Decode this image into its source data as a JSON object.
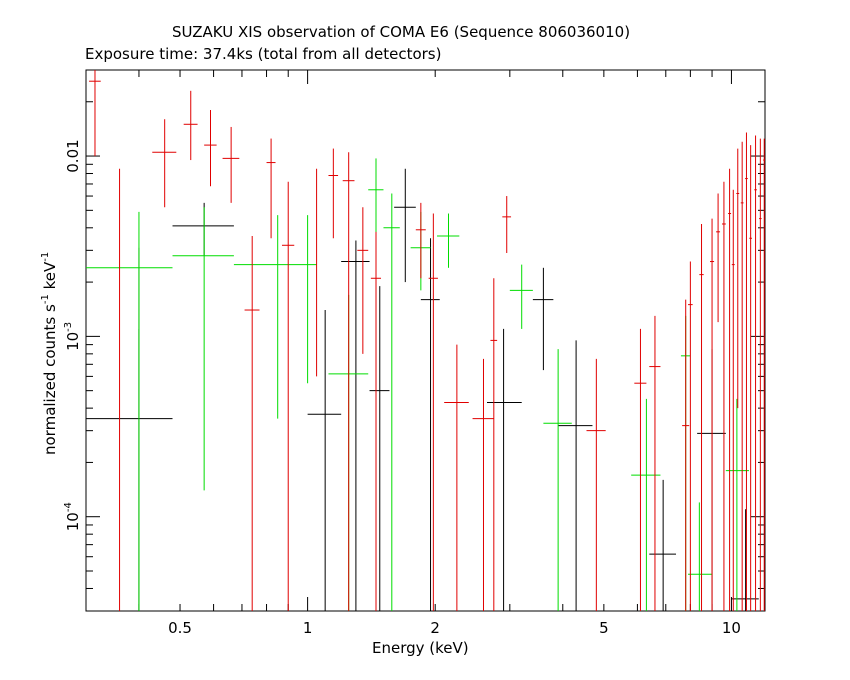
{
  "title": "SUZAKU XIS observation of COMA E6 (Sequence 806036010)",
  "subtitle": "Exposure time: 37.4ks (total from all detectors)",
  "colors": {
    "black": "#000000",
    "red": "#e00000",
    "green": "#00dd00"
  },
  "chart_data": {
    "type": "scatter",
    "xlabel": "Energy (keV)",
    "ylabel": {
      "a": "normalized counts s",
      "b": "-1",
      "c": " keV",
      "d": "-1"
    },
    "xscale": "log",
    "yscale": "log",
    "xlim": [
      0.3,
      12
    ],
    "ylim": [
      3e-05,
      0.03
    ],
    "x_ticks": [
      {
        "v": 0.5,
        "label": "0.5"
      },
      {
        "v": 1,
        "label": "1"
      },
      {
        "v": 2,
        "label": "2"
      },
      {
        "v": 5,
        "label": "5"
      },
      {
        "v": 10,
        "label": "10"
      }
    ],
    "y_ticks": [
      {
        "v": 0.01,
        "label": "0.01",
        "sup": ""
      },
      {
        "v": 0.001,
        "label": "10",
        "sup": "-3"
      },
      {
        "v": 0.0001,
        "label": "10",
        "sup": "-4"
      }
    ],
    "series": [
      {
        "color": "black",
        "points": [
          {
            "x": 0.4,
            "xlo": 0.3,
            "xhi": 0.48,
            "y": 0.00035,
            "ylo": 3e-05,
            "yhi": 0.0011
          },
          {
            "x": 0.4,
            "xlo": 0.4,
            "xhi": 0.4,
            "y": 0.0031,
            "ylo": 3e-05,
            "yhi": 0.0031
          },
          {
            "x": 0.57,
            "xlo": 0.48,
            "xhi": 0.67,
            "y": 0.0041,
            "ylo": 0.0028,
            "yhi": 0.0055
          },
          {
            "x": 1.1,
            "xlo": 1.0,
            "xhi": 1.2,
            "y": 0.00037,
            "ylo": 3e-05,
            "yhi": 0.0014
          },
          {
            "x": 1.3,
            "xlo": 1.2,
            "xhi": 1.4,
            "y": 0.0026,
            "ylo": 3e-05,
            "yhi": 0.0034
          },
          {
            "x": 1.48,
            "xlo": 1.4,
            "xhi": 1.56,
            "y": 0.0005,
            "ylo": 3e-05,
            "yhi": 0.0019
          },
          {
            "x": 1.7,
            "xlo": 1.6,
            "xhi": 1.8,
            "y": 0.0052,
            "ylo": 0.002,
            "yhi": 0.0085
          },
          {
            "x": 1.95,
            "xlo": 1.85,
            "xhi": 2.05,
            "y": 0.0016,
            "ylo": 3e-05,
            "yhi": 0.0035
          },
          {
            "x": 2.9,
            "xlo": 2.65,
            "xhi": 3.2,
            "y": 0.00043,
            "ylo": 3e-05,
            "yhi": 0.0011
          },
          {
            "x": 3.6,
            "xlo": 3.4,
            "xhi": 3.8,
            "y": 0.0016,
            "ylo": 0.00065,
            "yhi": 0.0024
          },
          {
            "x": 4.3,
            "xlo": 3.9,
            "xhi": 4.7,
            "y": 0.00032,
            "ylo": 3e-05,
            "yhi": 0.00095
          },
          {
            "x": 6.9,
            "xlo": 6.4,
            "xhi": 7.4,
            "y": 6.2e-05,
            "ylo": 3e-05,
            "yhi": 0.00016
          },
          {
            "x": 9.0,
            "xlo": 8.3,
            "xhi": 9.7,
            "y": 0.00029,
            "ylo": 3e-05,
            "yhi": 0.00085
          },
          {
            "x": 10.8,
            "xlo": 10.0,
            "xhi": 11.6,
            "y": 3.5e-05,
            "ylo": 3e-05,
            "yhi": 0.00011
          }
        ]
      },
      {
        "color": "green",
        "points": [
          {
            "x": 0.4,
            "xlo": 0.3,
            "xhi": 0.48,
            "y": 0.0024,
            "ylo": 3e-05,
            "yhi": 0.0049
          },
          {
            "x": 0.57,
            "xlo": 0.48,
            "xhi": 0.67,
            "y": 0.0028,
            "ylo": 0.00014,
            "yhi": 0.0052
          },
          {
            "x": 0.85,
            "xlo": 0.67,
            "xhi": 1.05,
            "y": 0.0025,
            "ylo": 0.00035,
            "yhi": 0.0047
          },
          {
            "x": 1.0,
            "xlo": 1.0,
            "xhi": 1.0,
            "y": 0.0025,
            "ylo": 0.00055,
            "yhi": 0.0047
          },
          {
            "x": 1.25,
            "xlo": 1.12,
            "xhi": 1.39,
            "y": 0.00062,
            "ylo": 3e-05,
            "yhi": 0.0017
          },
          {
            "x": 1.45,
            "xlo": 1.39,
            "xhi": 1.51,
            "y": 0.0065,
            "ylo": 0.0033,
            "yhi": 0.0097
          },
          {
            "x": 1.58,
            "xlo": 1.51,
            "xhi": 1.65,
            "y": 0.004,
            "ylo": 3e-05,
            "yhi": 0.0062
          },
          {
            "x": 1.85,
            "xlo": 1.75,
            "xhi": 1.95,
            "y": 0.0031,
            "ylo": 0.0018,
            "yhi": 0.0049
          },
          {
            "x": 2.15,
            "xlo": 2.02,
            "xhi": 2.28,
            "y": 0.0036,
            "ylo": 0.0024,
            "yhi": 0.0048
          },
          {
            "x": 3.2,
            "xlo": 3.0,
            "xhi": 3.4,
            "y": 0.0018,
            "ylo": 0.0011,
            "yhi": 0.0025
          },
          {
            "x": 3.9,
            "xlo": 3.6,
            "xhi": 4.2,
            "y": 0.00033,
            "ylo": 3e-05,
            "yhi": 0.00085
          },
          {
            "x": 6.3,
            "xlo": 5.8,
            "xhi": 6.8,
            "y": 0.00017,
            "ylo": 3e-05,
            "yhi": 0.00045
          },
          {
            "x": 7.8,
            "xlo": 7.6,
            "xhi": 8.0,
            "y": 0.00078,
            "ylo": 3e-05,
            "yhi": 0.0013
          },
          {
            "x": 8.4,
            "xlo": 7.9,
            "xhi": 9.0,
            "y": 4.8e-05,
            "ylo": 3e-05,
            "yhi": 0.00012
          },
          {
            "x": 10.3,
            "xlo": 9.7,
            "xhi": 11.0,
            "y": 0.00018,
            "ylo": 3e-05,
            "yhi": 0.00045
          }
        ]
      },
      {
        "color": "red",
        "points": [
          {
            "x": 0.315,
            "xlo": 0.305,
            "xhi": 0.325,
            "y": 0.026,
            "ylo": 0.01,
            "yhi": 0.03
          },
          {
            "x": 0.36,
            "xlo": 0.36,
            "xhi": 0.36,
            "y": 0.005,
            "ylo": 3e-05,
            "yhi": 0.0085
          },
          {
            "x": 0.46,
            "xlo": 0.43,
            "xhi": 0.49,
            "y": 0.0105,
            "ylo": 0.0052,
            "yhi": 0.016
          },
          {
            "x": 0.53,
            "xlo": 0.51,
            "xhi": 0.55,
            "y": 0.015,
            "ylo": 0.0095,
            "yhi": 0.023
          },
          {
            "x": 0.59,
            "xlo": 0.57,
            "xhi": 0.61,
            "y": 0.0115,
            "ylo": 0.0068,
            "yhi": 0.018
          },
          {
            "x": 0.66,
            "xlo": 0.63,
            "xhi": 0.69,
            "y": 0.0097,
            "ylo": 0.0055,
            "yhi": 0.0145
          },
          {
            "x": 0.74,
            "xlo": 0.71,
            "xhi": 0.77,
            "y": 0.0014,
            "ylo": 3e-05,
            "yhi": 0.0036
          },
          {
            "x": 0.82,
            "xlo": 0.8,
            "xhi": 0.84,
            "y": 0.0092,
            "ylo": 0.0035,
            "yhi": 0.0125
          },
          {
            "x": 0.9,
            "xlo": 0.87,
            "xhi": 0.93,
            "y": 0.0032,
            "ylo": 3e-05,
            "yhi": 0.0072
          },
          {
            "x": 1.05,
            "xlo": 1.05,
            "xhi": 1.05,
            "y": 0.0035,
            "ylo": 0.0006,
            "yhi": 0.0085
          },
          {
            "x": 1.15,
            "xlo": 1.12,
            "xhi": 1.18,
            "y": 0.0078,
            "ylo": 0.0035,
            "yhi": 0.011
          },
          {
            "x": 1.25,
            "xlo": 1.21,
            "xhi": 1.29,
            "y": 0.0073,
            "ylo": 3e-05,
            "yhi": 0.0105
          },
          {
            "x": 1.35,
            "xlo": 1.31,
            "xhi": 1.39,
            "y": 0.003,
            "ylo": 0.0008,
            "yhi": 0.0052
          },
          {
            "x": 1.45,
            "xlo": 1.41,
            "xhi": 1.49,
            "y": 0.0021,
            "ylo": 3e-05,
            "yhi": 0.0038
          },
          {
            "x": 1.85,
            "xlo": 1.8,
            "xhi": 1.9,
            "y": 0.0039,
            "ylo": 0.0021,
            "yhi": 0.0055
          },
          {
            "x": 1.98,
            "xlo": 1.93,
            "xhi": 2.03,
            "y": 0.0021,
            "ylo": 3e-05,
            "yhi": 0.0048
          },
          {
            "x": 2.25,
            "xlo": 2.1,
            "xhi": 2.4,
            "y": 0.00043,
            "ylo": 3e-05,
            "yhi": 0.0009
          },
          {
            "x": 2.6,
            "xlo": 2.45,
            "xhi": 2.75,
            "y": 0.00035,
            "ylo": 3e-05,
            "yhi": 0.00075
          },
          {
            "x": 2.75,
            "xlo": 2.7,
            "xhi": 2.8,
            "y": 0.00095,
            "ylo": 3e-05,
            "yhi": 0.0021
          },
          {
            "x": 2.95,
            "xlo": 2.88,
            "xhi": 3.02,
            "y": 0.0046,
            "ylo": 0.0029,
            "yhi": 0.006
          },
          {
            "x": 4.8,
            "xlo": 4.55,
            "xhi": 5.05,
            "y": 0.0003,
            "ylo": 3e-05,
            "yhi": 0.00075
          },
          {
            "x": 6.1,
            "xlo": 5.9,
            "xhi": 6.3,
            "y": 0.00055,
            "ylo": 3e-05,
            "yhi": 0.0011
          },
          {
            "x": 6.6,
            "xlo": 6.4,
            "xhi": 6.8,
            "y": 0.00068,
            "ylo": 3e-05,
            "yhi": 0.0013
          },
          {
            "x": 7.8,
            "xlo": 7.65,
            "xhi": 7.95,
            "y": 0.00032,
            "ylo": 3e-05,
            "yhi": 0.0016
          },
          {
            "x": 8.0,
            "xlo": 7.9,
            "xhi": 8.1,
            "y": 0.0015,
            "ylo": 3e-05,
            "yhi": 0.0026
          },
          {
            "x": 8.5,
            "xlo": 8.4,
            "xhi": 8.6,
            "y": 0.0022,
            "ylo": 3e-05,
            "yhi": 0.0042
          },
          {
            "x": 9.0,
            "xlo": 8.9,
            "xhi": 9.1,
            "y": 0.0026,
            "ylo": 3e-05,
            "yhi": 0.0045
          },
          {
            "x": 9.3,
            "xlo": 9.2,
            "xhi": 9.4,
            "y": 0.0038,
            "ylo": 0.0012,
            "yhi": 0.0062
          },
          {
            "x": 9.6,
            "xlo": 9.5,
            "xhi": 9.7,
            "y": 0.0042,
            "ylo": 3e-05,
            "yhi": 0.0072
          },
          {
            "x": 9.9,
            "xlo": 9.82,
            "xhi": 9.98,
            "y": 0.0048,
            "ylo": 3e-05,
            "yhi": 0.0085
          },
          {
            "x": 10.1,
            "xlo": 10.02,
            "xhi": 10.18,
            "y": 0.0025,
            "ylo": 3e-05,
            "yhi": 0.0065
          },
          {
            "x": 10.35,
            "xlo": 10.27,
            "xhi": 10.43,
            "y": 0.0062,
            "ylo": 0.0004,
            "yhi": 0.011
          },
          {
            "x": 10.6,
            "xlo": 10.52,
            "xhi": 10.68,
            "y": 0.0055,
            "ylo": 3e-05,
            "yhi": 0.012
          },
          {
            "x": 10.85,
            "xlo": 10.77,
            "xhi": 10.93,
            "y": 0.0075,
            "ylo": 3e-05,
            "yhi": 0.0135
          },
          {
            "x": 11.1,
            "xlo": 11.02,
            "xhi": 11.18,
            "y": 0.0035,
            "ylo": 3e-05,
            "yhi": 0.0115
          },
          {
            "x": 11.4,
            "xlo": 11.32,
            "xhi": 11.48,
            "y": 0.0065,
            "ylo": 3e-05,
            "yhi": 0.013
          },
          {
            "x": 11.7,
            "xlo": 11.62,
            "xhi": 11.78,
            "y": 0.0045,
            "ylo": 3e-05,
            "yhi": 0.0125
          },
          {
            "x": 11.95,
            "xlo": 11.88,
            "xhi": 12.0,
            "y": 0.0095,
            "ylo": 3e-05,
            "yhi": 0.0125
          }
        ]
      }
    ]
  }
}
